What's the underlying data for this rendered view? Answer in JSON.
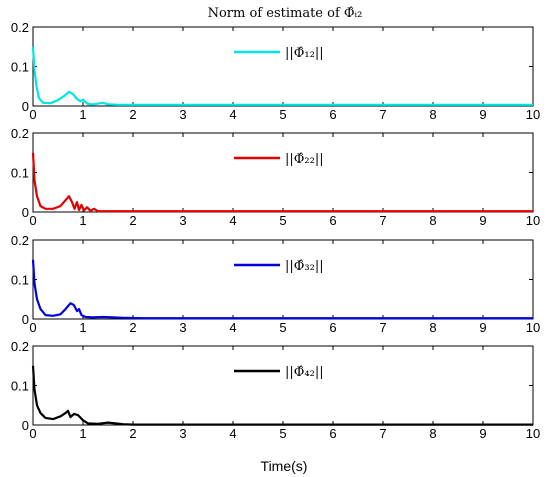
{
  "figure": {
    "title": "Norm of estimate of Φ̂ᵢ₂",
    "xlabel": "Time(s)"
  },
  "chart_data": [
    {
      "type": "line",
      "xlim": [
        0,
        10
      ],
      "ylim": [
        0,
        0.2
      ],
      "xticks": [
        "0",
        "1",
        "2",
        "3",
        "4",
        "5",
        "6",
        "7",
        "8",
        "9",
        "10"
      ],
      "yticks": [
        "0",
        "0.1",
        "0.2"
      ],
      "grid": false,
      "legend_position": "top-right",
      "series": [
        {
          "name": "||Φ̂₁₂||",
          "color": "#00e5e5",
          "points": [
            [
              0,
              0.15
            ],
            [
              0.03,
              0.09
            ],
            [
              0.07,
              0.05
            ],
            [
              0.12,
              0.02
            ],
            [
              0.2,
              0.008
            ],
            [
              0.35,
              0.007
            ],
            [
              0.5,
              0.015
            ],
            [
              0.62,
              0.025
            ],
            [
              0.72,
              0.036
            ],
            [
              0.8,
              0.03
            ],
            [
              0.88,
              0.018
            ],
            [
              0.95,
              0.012
            ],
            [
              1.0,
              0.016
            ],
            [
              1.05,
              0.01
            ],
            [
              1.1,
              0.005
            ],
            [
              1.2,
              0.004
            ],
            [
              1.3,
              0.006
            ],
            [
              1.4,
              0.008
            ],
            [
              1.5,
              0.004
            ],
            [
              1.7,
              0.003
            ],
            [
              2.0,
              0.003
            ],
            [
              10,
              0.003
            ]
          ]
        }
      ]
    },
    {
      "type": "line",
      "xlim": [
        0,
        10
      ],
      "ylim": [
        0,
        0.2
      ],
      "xticks": [
        "0",
        "1",
        "2",
        "3",
        "4",
        "5",
        "6",
        "7",
        "8",
        "9",
        "10"
      ],
      "yticks": [
        "0",
        "0.1",
        "0.2"
      ],
      "grid": false,
      "legend_position": "top-right",
      "series": [
        {
          "name": "||Φ̂₂₂||",
          "color": "#e00000",
          "points": [
            [
              0,
              0.15
            ],
            [
              0.03,
              0.08
            ],
            [
              0.08,
              0.04
            ],
            [
              0.15,
              0.015
            ],
            [
              0.25,
              0.008
            ],
            [
              0.4,
              0.008
            ],
            [
              0.55,
              0.015
            ],
            [
              0.65,
              0.03
            ],
            [
              0.72,
              0.04
            ],
            [
              0.78,
              0.025
            ],
            [
              0.83,
              0.008
            ],
            [
              0.88,
              0.025
            ],
            [
              0.92,
              0.005
            ],
            [
              0.97,
              0.018
            ],
            [
              1.02,
              0.004
            ],
            [
              1.08,
              0.012
            ],
            [
              1.15,
              0.003
            ],
            [
              1.22,
              0.008
            ],
            [
              1.3,
              0.002
            ],
            [
              1.5,
              0.002
            ],
            [
              10,
              0.002
            ]
          ]
        }
      ]
    },
    {
      "type": "line",
      "xlim": [
        0,
        10
      ],
      "ylim": [
        0,
        0.2
      ],
      "xticks": [
        "0",
        "1",
        "2",
        "3",
        "4",
        "5",
        "6",
        "7",
        "8",
        "9",
        "10"
      ],
      "yticks": [
        "0",
        "0.1",
        "0.2"
      ],
      "grid": false,
      "legend_position": "top-right",
      "series": [
        {
          "name": "||Φ̂₃₂||",
          "color": "#0000e0",
          "points": [
            [
              0,
              0.15
            ],
            [
              0.03,
              0.09
            ],
            [
              0.08,
              0.05
            ],
            [
              0.15,
              0.025
            ],
            [
              0.25,
              0.01
            ],
            [
              0.4,
              0.008
            ],
            [
              0.55,
              0.012
            ],
            [
              0.65,
              0.025
            ],
            [
              0.75,
              0.04
            ],
            [
              0.82,
              0.035
            ],
            [
              0.88,
              0.02
            ],
            [
              0.92,
              0.025
            ],
            [
              0.97,
              0.01
            ],
            [
              1.05,
              0.005
            ],
            [
              1.2,
              0.004
            ],
            [
              1.4,
              0.005
            ],
            [
              1.6,
              0.004
            ],
            [
              1.8,
              0.003
            ],
            [
              2.2,
              0.002
            ],
            [
              10,
              0.002
            ]
          ]
        }
      ]
    },
    {
      "type": "line",
      "xlim": [
        0,
        10
      ],
      "ylim": [
        0,
        0.2
      ],
      "xticks": [
        "0",
        "1",
        "2",
        "3",
        "4",
        "5",
        "6",
        "7",
        "8",
        "9",
        "10"
      ],
      "yticks": [
        "0",
        "0.1",
        "0.2"
      ],
      "grid": false,
      "legend_position": "top-right",
      "series": [
        {
          "name": "||Φ̂₄₂||",
          "color": "#000000",
          "points": [
            [
              0,
              0.15
            ],
            [
              0.03,
              0.09
            ],
            [
              0.08,
              0.05
            ],
            [
              0.15,
              0.03
            ],
            [
              0.25,
              0.018
            ],
            [
              0.4,
              0.015
            ],
            [
              0.55,
              0.022
            ],
            [
              0.65,
              0.03
            ],
            [
              0.7,
              0.036
            ],
            [
              0.75,
              0.02
            ],
            [
              0.82,
              0.028
            ],
            [
              0.9,
              0.025
            ],
            [
              1.0,
              0.012
            ],
            [
              1.1,
              0.004
            ],
            [
              1.3,
              0.003
            ],
            [
              1.5,
              0.006
            ],
            [
              1.65,
              0.004
            ],
            [
              1.8,
              0.002
            ],
            [
              2.0,
              0.001
            ],
            [
              10,
              0.001
            ]
          ]
        }
      ]
    }
  ]
}
